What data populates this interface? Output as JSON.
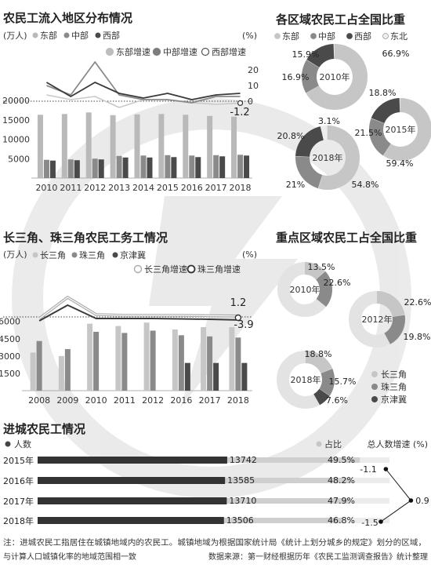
{
  "charts": {
    "c1": {
      "type": "bar",
      "title": "农民工流入地区分布情况",
      "unit_left": "(万人)",
      "unit_right": "(%)",
      "categories": [
        "2010",
        "2011",
        "2012",
        "2013",
        "2014",
        "2015",
        "2016",
        "2017",
        "2018"
      ],
      "bar_legend": [
        "东部",
        "中部",
        "西部"
      ],
      "line_legend": [
        "东部增速",
        "中部增速",
        "西部增速"
      ],
      "bar_colors": [
        "#b9b9b9",
        "#8a8a8a",
        "#4a4a4a"
      ],
      "line_colors": [
        "#bdbdbd",
        "#7d7d7d",
        "#4a4a4a"
      ],
      "y_ticks": [
        "5000",
        "10000",
        "15000",
        "20000"
      ],
      "y_max": 20000,
      "r_ticks": [
        "0",
        "10",
        "20"
      ],
      "r_min": -5,
      "r_max": 22,
      "series": [
        {
          "name": "东部",
          "values": [
            16300,
            16500,
            16900,
            16200,
            16400,
            16500,
            16300,
            16000,
            15800
          ]
        },
        {
          "name": "中部",
          "values": [
            4700,
            4800,
            5000,
            5700,
            5800,
            5900,
            5800,
            5900,
            6000
          ]
        },
        {
          "name": "西部",
          "values": [
            4500,
            4600,
            4800,
            5300,
            5300,
            5400,
            5400,
            5600,
            5800
          ]
        }
      ],
      "growth": [
        {
          "name": "东部增速",
          "values": [
            4,
            1,
            3,
            -4,
            1,
            1,
            -1,
            -2,
            -1.2
          ]
        },
        {
          "name": "中部增速",
          "values": [
            10,
            4,
            25,
            4,
            1,
            1,
            -1,
            3,
            3
          ]
        },
        {
          "name": "西部增速",
          "values": [
            12,
            3,
            12,
            5,
            2,
            5,
            1,
            4,
            5
          ]
        }
      ],
      "annotation": "-1.2"
    },
    "c2": {
      "type": "bar",
      "title": "长三角、珠三角农民工务工情况",
      "unit_left": "(万人)",
      "unit_right": "(%)",
      "categories": [
        "2008",
        "2009",
        "2010",
        "2011",
        "2012",
        "2016",
        "2017",
        "2018"
      ],
      "bar_legend": [
        "长三角",
        "珠三角",
        "京津冀"
      ],
      "line_legend": [
        "长三角增速",
        "珠三角增速"
      ],
      "bar_colors": [
        "#c6c6c6",
        "#8a8a8a",
        "#4a4a4a"
      ],
      "y_ticks": [
        "1500",
        "3000",
        "4500",
        "6000"
      ],
      "y_max": 7000,
      "series": [
        {
          "name": "长三角",
          "values": [
            3300,
            3000,
            5800,
            5600,
            5900,
            5300,
            5500,
            5500
          ]
        },
        {
          "name": "珠三角",
          "values": [
            4300,
            3600,
            5100,
            5000,
            5200,
            4800,
            4700,
            4600
          ]
        },
        {
          "name": "京津冀",
          "values": [
            null,
            null,
            null,
            null,
            null,
            2400,
            2400,
            2400
          ]
        }
      ],
      "growth": [
        {
          "name": "长三角增速",
          "values": [
            -2,
            25,
            3,
            2,
            2,
            2,
            1.5,
            1.2
          ]
        },
        {
          "name": "珠三角增速",
          "values": [
            -5,
            15,
            -2,
            -2,
            -2,
            -2.5,
            -3,
            -3.9
          ]
        }
      ],
      "annotation_top": "1.2",
      "annotation_bottom": "-3.9"
    },
    "c3": {
      "type": "pie",
      "title": "各区域农民工占全国比重",
      "legend": [
        "东部",
        "中部",
        "西部",
        "东北"
      ],
      "colors": [
        "#c6c6c6",
        "#8a8a8a",
        "#4a4a4a",
        "#eeeeee"
      ],
      "donuts": [
        {
          "year": "2010年",
          "values": [
            66.9,
            16.9,
            15.9
          ],
          "labels": [
            "66.9%",
            "16.9%",
            "15.9%"
          ]
        },
        {
          "year": "2015年",
          "values": [
            59.4,
            21.5,
            18.8
          ],
          "labels": [
            "59.4%",
            "21.5%",
            "18.8%"
          ]
        },
        {
          "year": "2018年",
          "values": [
            54.8,
            21,
            20.8,
            3.1
          ],
          "labels": [
            "54.8%",
            "21%",
            "20.8%",
            "3.1%"
          ]
        }
      ]
    },
    "c4": {
      "type": "pie",
      "title": "重点区域农民工占全国比重",
      "legend": [
        "长三角",
        "珠三角",
        "京津冀"
      ],
      "colors": [
        "#c6c6c6",
        "#8a8a8a",
        "#4a4a4a"
      ],
      "donuts": [
        {
          "year": "2010年",
          "values": [
            13.5,
            22.6
          ],
          "labels": [
            "13.5%",
            "22.6%"
          ]
        },
        {
          "year": "2012年",
          "values": [
            22.6,
            19.8
          ],
          "labels": [
            "22.6%",
            "19.8%"
          ]
        },
        {
          "year": "2018年",
          "values": [
            18.8,
            15.7,
            7.6
          ],
          "labels": [
            "18.8%",
            "15.7%",
            "7.6%"
          ]
        }
      ]
    },
    "c5": {
      "type": "bar",
      "title": "进城农民工情况",
      "legend_count": "人数",
      "legend_share": "占比",
      "legend_growth": "总人数增速 (%)",
      "rows": [
        {
          "year": "2015年",
          "count": "13742",
          "share": "49.5%",
          "share_value": 49.5
        },
        {
          "year": "2016年",
          "count": "13585",
          "share": "48.2%",
          "share_value": 48.2
        },
        {
          "year": "2017年",
          "count": "13710",
          "share": "47.9%",
          "share_value": 47.9
        },
        {
          "year": "2018年",
          "count": "13506",
          "share": "46.8%",
          "share_value": 46.8
        }
      ],
      "count_values": [
        13742,
        13585,
        13710,
        13506
      ],
      "growth_labels": [
        "-1.1",
        "0.9",
        "-1.5"
      ],
      "growth_values": [
        -1.1,
        0.9,
        -1.5
      ]
    }
  },
  "footer": {
    "note1": "注：进城农民工指居住在城镇地域内的农民工。城镇地域为根据国家统计局《统计上划分城乡的规定》划分的区域，",
    "note2": "与计算人口城镇化率的地域范围相一致",
    "source": "数据来源：第一财经根据历年《农民工监测调查报告》统计整理"
  }
}
